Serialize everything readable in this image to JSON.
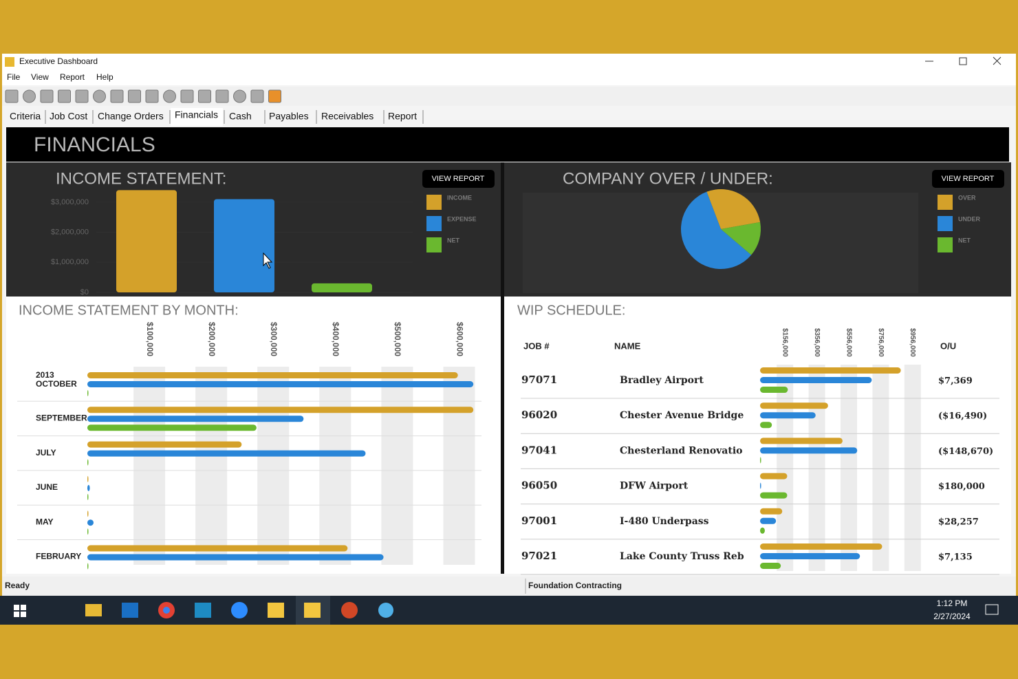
{
  "window": {
    "title": "Executive Dashboard",
    "menu": [
      "File",
      "View",
      "Report",
      "Help"
    ],
    "tabs": [
      "Criteria",
      "Job Cost",
      "Change Orders",
      "Financials",
      "Cash",
      "Payables",
      "Receivables",
      "Report"
    ],
    "active_tab": 3
  },
  "header": "FINANCIALS",
  "status": {
    "left": "Ready",
    "right": "Foundation Contracting"
  },
  "taskbar": {
    "time": "1:12 PM",
    "date": "2/27/2024"
  },
  "chart_data": [
    {
      "type": "bar",
      "title": "INCOME STATEMENT:",
      "button": "VIEW REPORT",
      "categories": [
        "INCOME",
        "EXPENSE",
        "NET"
      ],
      "values": [
        3400000,
        3100000,
        300000
      ],
      "colors": [
        "#d4a12a",
        "#2a86d8",
        "#6ab82f"
      ],
      "ylim": [
        0,
        3500000
      ],
      "yticks": [
        {
          "value": 0,
          "label": "$0"
        },
        {
          "value": 1000000,
          "label": "$1,000,000"
        },
        {
          "value": 2000000,
          "label": "$2,000,000"
        },
        {
          "value": 3000000,
          "label": "$3,000,000"
        }
      ]
    },
    {
      "type": "pie",
      "title": "COMPANY OVER / UNDER:",
      "button": "VIEW REPORT",
      "categories": [
        "OVER",
        "UNDER",
        "NET"
      ],
      "values": [
        28,
        58,
        14
      ],
      "colors": [
        "#d4a12a",
        "#2a86d8",
        "#6ab82f"
      ]
    },
    {
      "type": "hbar",
      "title": "INCOME STATEMENT BY MONTH:",
      "year_label": "2013",
      "categories": [
        "OCTOBER",
        "SEPTEMBER",
        "JULY",
        "JUNE",
        "MAY",
        "FEBRUARY"
      ],
      "series": [
        {
          "color": "#d4a12a",
          "values": [
            598000,
            623000,
            249000,
            1000,
            1000,
            420000
          ]
        },
        {
          "color": "#2a86d8",
          "values": [
            623000,
            349000,
            449000,
            4000,
            10000,
            478000
          ]
        },
        {
          "color": "#6ab82f",
          "values": [
            1000,
            273000,
            1000,
            1000,
            1000,
            1000
          ]
        }
      ],
      "xlim": [
        0,
        625000
      ],
      "xticks": [
        {
          "value": 100000,
          "label": "$100,000"
        },
        {
          "value": 200000,
          "label": "$200,000"
        },
        {
          "value": 300000,
          "label": "$300,000"
        },
        {
          "value": 400000,
          "label": "$400,000"
        },
        {
          "value": 500000,
          "label": "$500,000"
        },
        {
          "value": 600000,
          "label": "$600,000"
        }
      ]
    },
    {
      "type": "wip",
      "title": "WIP SCHEDULE:",
      "columns": [
        "JOB #",
        "NAME",
        "O/U"
      ],
      "jobs": [
        "97071",
        "96020",
        "97041",
        "96050",
        "97001",
        "97021"
      ],
      "names": [
        "Bradley Airport",
        "Chester Avenue Bridge",
        "Chesterland Renovatio",
        "DFW Airport",
        "I-480 Underpass",
        "Lake County Truss Reb"
      ],
      "ou": [
        "$7,369",
        "($16,490)",
        "($148,670)",
        "$180,000",
        "$28,257",
        "$7,135"
      ],
      "series": [
        {
          "color": "#d4a12a",
          "values": [
            882000,
            426000,
            517000,
            170000,
            139000,
            765000
          ]
        },
        {
          "color": "#2a86d8",
          "values": [
            700000,
            348000,
            609000,
            4000,
            100000,
            626000
          ]
        },
        {
          "color": "#6ab82f",
          "values": [
            174000,
            74000,
            2000,
            170000,
            30000,
            130000
          ]
        }
      ],
      "xlim": [
        0,
        1000000
      ],
      "xticks": [
        {
          "value": 156000,
          "label": "$156,000"
        },
        {
          "value": 356000,
          "label": "$356,000"
        },
        {
          "value": 556000,
          "label": "$556,000"
        },
        {
          "value": 756000,
          "label": "$756,000"
        },
        {
          "value": 956000,
          "label": "$956,000"
        }
      ]
    }
  ]
}
